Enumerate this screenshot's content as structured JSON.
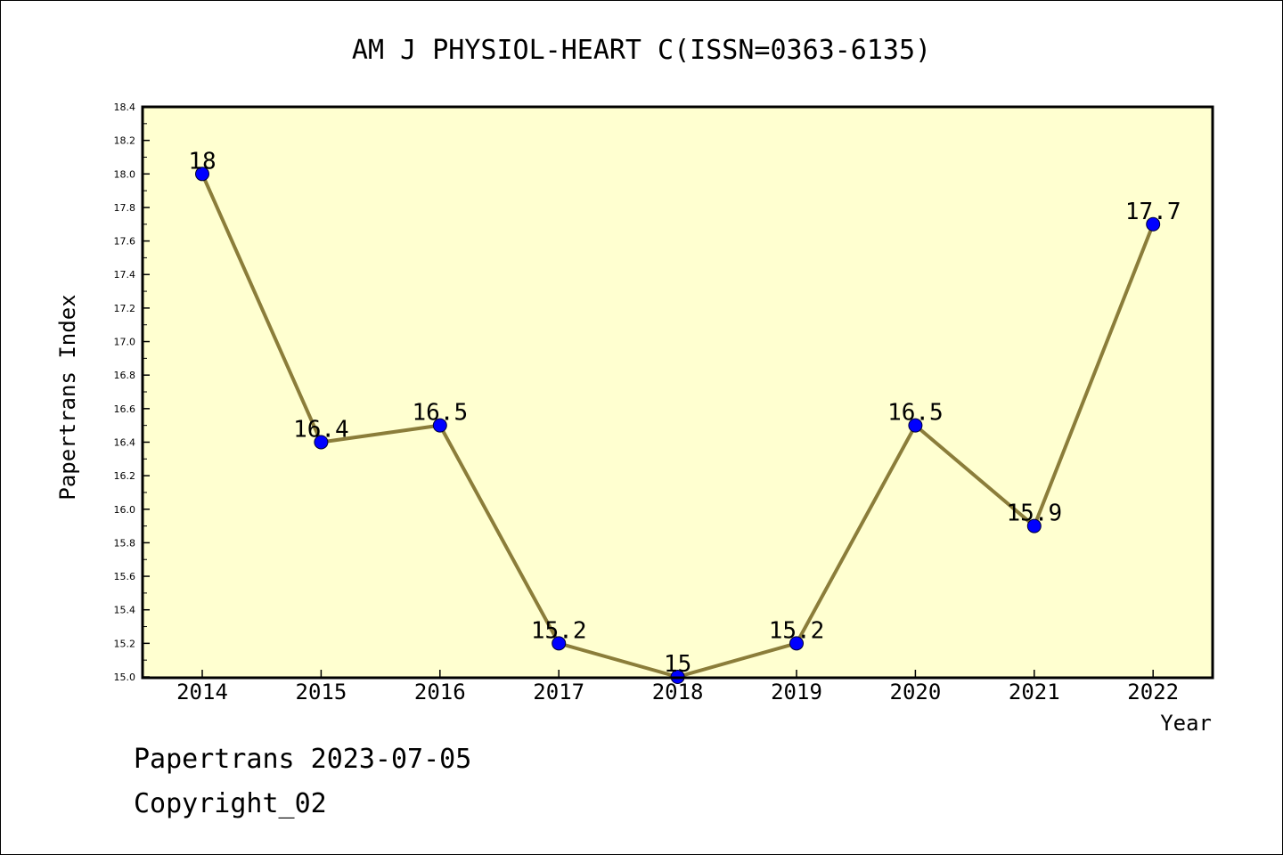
{
  "chart_data": {
    "type": "line",
    "title": "AM J PHYSIOL-HEART C(ISSN=0363-6135)",
    "xlabel": "Year",
    "ylabel": "Papertrans Index",
    "categories": [
      "2014",
      "2015",
      "2016",
      "2017",
      "2018",
      "2019",
      "2020",
      "2021",
      "2022"
    ],
    "values": [
      18.0,
      16.4,
      16.5,
      15.2,
      15.0,
      15.2,
      16.5,
      15.9,
      17.7
    ],
    "data_labels": [
      "18",
      "16.4",
      "16.5",
      "15.2",
      "15",
      "15.2",
      "16.5",
      "15.9",
      "17.7"
    ],
    "ylim": [
      15.0,
      18.4
    ],
    "yticks": [
      "15.0",
      "15.2",
      "15.4",
      "15.6",
      "15.8",
      "16.0",
      "16.2",
      "16.4",
      "16.6",
      "16.8",
      "17.0",
      "17.2",
      "17.4",
      "17.6",
      "17.8",
      "18.0",
      "18.2",
      "18.4"
    ],
    "colors": {
      "plot_background": "#ffffd0",
      "line": "#8b7d3a",
      "marker": "#0000ff"
    },
    "grid": false,
    "legend": "none"
  },
  "footer": {
    "line1": "Papertrans 2023-07-05",
    "line2": "Copyright_02"
  }
}
